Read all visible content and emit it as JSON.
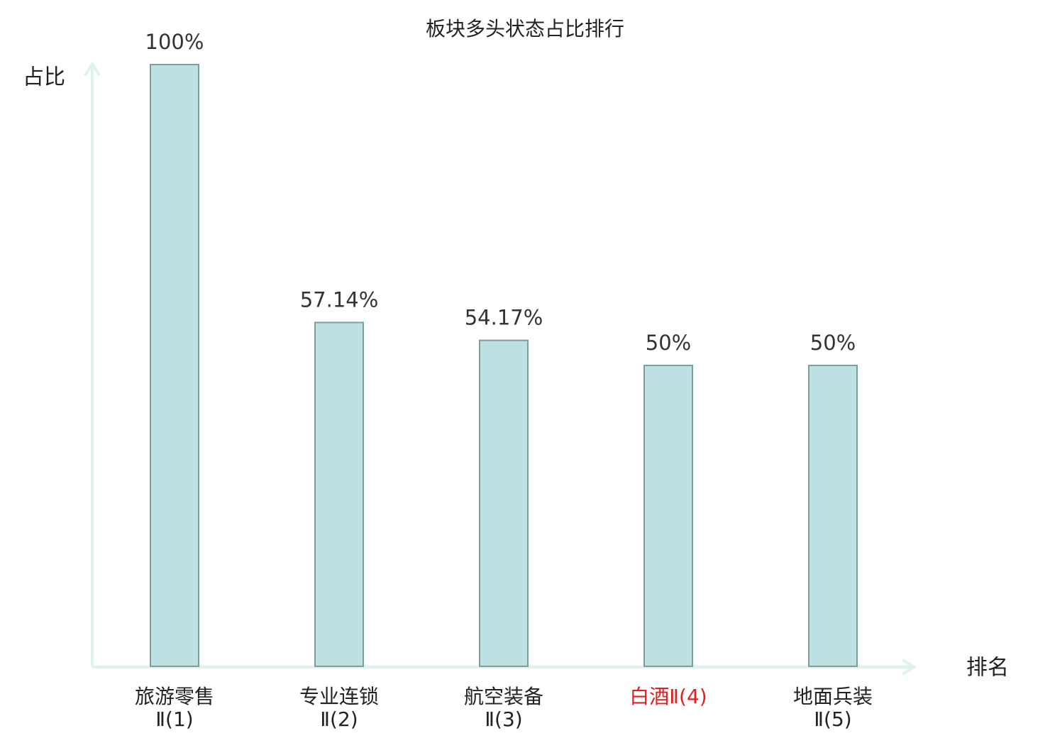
{
  "chart_data": {
    "type": "bar",
    "title": "板块多头状态占比排行",
    "y_axis_label": "占比",
    "x_axis_label": "排名",
    "categories": [
      "旅游零售\nⅡ(1)",
      "专业连锁\nⅡ(2)",
      "航空装备\nⅡ(3)",
      "白酒Ⅱ(4)",
      "地面兵装\nⅡ(5)"
    ],
    "values": [
      100,
      57.14,
      54.17,
      50,
      50
    ],
    "value_labels": [
      "100%",
      "57.14%",
      "54.17%",
      "50%",
      "50%"
    ],
    "color": "#bde0e2",
    "edge_color": "#7e9e9e",
    "highlight_category": 3,
    "highlight_color": "#e02020",
    "ylim": [
      0,
      100
    ]
  }
}
